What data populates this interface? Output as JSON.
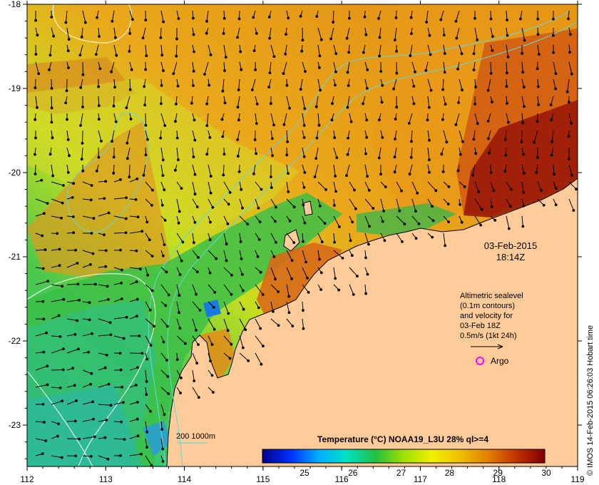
{
  "map": {
    "x_ticks": [
      "112",
      "113",
      "114",
      "115",
      "116",
      "117",
      "118",
      "119"
    ],
    "y_ticks": [
      "-18",
      "-19",
      "-20",
      "-21",
      "-22",
      "-23"
    ],
    "date": "03-Feb-2015",
    "time": "18:14Z",
    "info_lines": [
      "Altimetric sealevel",
      "(0.1m contours)",
      "and velocity for",
      "03-Feb 18Z",
      "0.5m/s (1kt 24h)"
    ],
    "argo_label": "Argo",
    "depth_label": "200  1000m",
    "credit": "© IMOS 14-Feb-2015 06:26:03 Hobart time",
    "colorbar": {
      "title": "Temperature (°C) NOAA19_L3U 28% ql>=4",
      "labels": [
        "25",
        "26",
        "27",
        "28",
        "29",
        "30"
      ],
      "colors": [
        "#00008f",
        "#0030ff",
        "#00b0ff",
        "#00e0c0",
        "#20c040",
        "#a0e000",
        "#f0f000",
        "#f0c000",
        "#e08000",
        "#c03000",
        "#800000"
      ]
    },
    "colors": {
      "land": "#ffcc99",
      "contour_cyan": "#60d8d8",
      "argo": "#ff00ff"
    }
  }
}
